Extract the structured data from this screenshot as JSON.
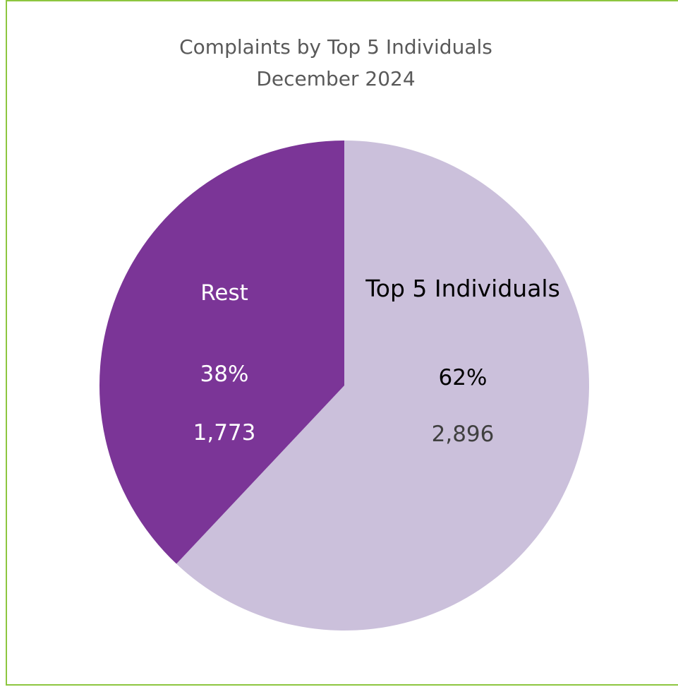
{
  "chart_data": {
    "type": "pie",
    "title": "Complaints by Top 5 Individuals",
    "subtitle": "December 2024",
    "slices": [
      {
        "name": "Top 5 Individuals",
        "value": 2896,
        "value_label": "2,896",
        "percent_label": "62%",
        "color": "#cbc0db"
      },
      {
        "name": "Rest",
        "value": 1773,
        "value_label": "1,773",
        "percent_label": "38%",
        "color": "#7b3597"
      }
    ],
    "legend": "none"
  },
  "colors": {
    "frame_border": "#8dc63f",
    "title_text": "#595959",
    "label_dark": "#000000",
    "label_muted": "#404040",
    "label_light": "#ffffff"
  }
}
